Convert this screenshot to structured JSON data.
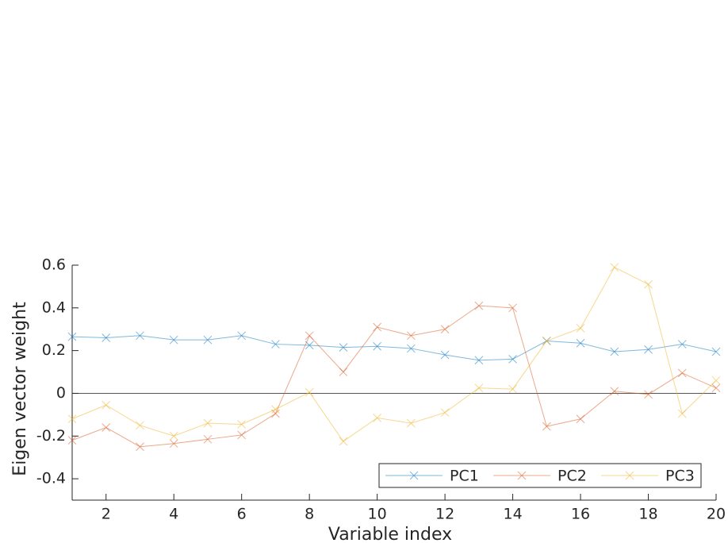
{
  "chart_data": {
    "type": "line",
    "x_label": "Variable index",
    "y_label": "Eigen vector weight",
    "x": [
      1,
      2,
      3,
      4,
      5,
      6,
      7,
      8,
      9,
      10,
      11,
      12,
      13,
      14,
      15,
      16,
      17,
      18,
      19,
      20
    ],
    "series": [
      {
        "name": "PC1",
        "color": "#0072bd",
        "values": [
          0.265,
          0.26,
          0.27,
          0.25,
          0.25,
          0.27,
          0.23,
          0.225,
          0.215,
          0.22,
          0.21,
          0.18,
          0.155,
          0.16,
          0.245,
          0.235,
          0.195,
          0.205,
          0.23,
          0.195
        ]
      },
      {
        "name": "PC2",
        "color": "#d95319",
        "values": [
          -0.22,
          -0.16,
          -0.25,
          -0.235,
          -0.215,
          -0.195,
          -0.095,
          0.27,
          0.1,
          0.31,
          0.27,
          0.3,
          0.41,
          0.4,
          -0.155,
          -0.12,
          0.01,
          -0.005,
          0.095,
          0.025
        ]
      },
      {
        "name": "PC3",
        "color": "#edb120",
        "values": [
          -0.12,
          -0.055,
          -0.15,
          -0.2,
          -0.14,
          -0.145,
          -0.075,
          0.005,
          -0.225,
          -0.115,
          -0.14,
          -0.09,
          0.025,
          0.02,
          0.245,
          0.305,
          0.59,
          0.51,
          -0.095,
          0.06
        ]
      }
    ],
    "xlim": [
      1,
      20
    ],
    "xticks": [
      2,
      4,
      6,
      8,
      10,
      12,
      14,
      16,
      18,
      20
    ],
    "ylim": [
      -0.5,
      0.6
    ],
    "yticks": [
      -0.4,
      -0.2,
      0,
      0.2,
      0.4,
      0.6
    ],
    "legend": "bottom-right"
  }
}
